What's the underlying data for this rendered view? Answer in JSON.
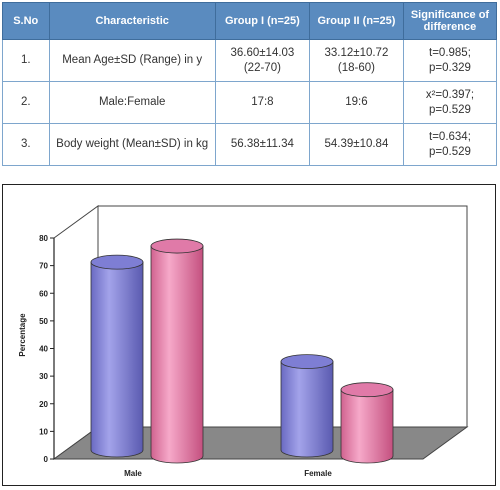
{
  "table": {
    "headers": [
      "S.No",
      "Characteristic",
      "Group I (n=25)",
      "Group II (n=25)",
      "Significance of difference"
    ],
    "rows": [
      [
        "1.",
        "Mean Age±SD (Range) in y",
        "36.60±14.03 (22-70)",
        "33.12±10.72 (18-60)",
        "t=0.985; p=0.329"
      ],
      [
        "2.",
        "Male:Female",
        "17:8",
        "19:6",
        "x²=0.397; p=0.529"
      ],
      [
        "3.",
        "Body weight (Mean±SD) in kg",
        "56.38±11.34",
        "54.39±10.84",
        "t=0.634; p=0.529"
      ]
    ]
  },
  "chart_data": {
    "type": "bar",
    "categories": [
      "Male",
      "Female"
    ],
    "series": [
      {
        "values": [
          68,
          32
        ]
      },
      {
        "values": [
          76,
          24
        ]
      }
    ],
    "ylabel": "Percentage",
    "ylim": [
      0,
      80
    ],
    "yticks": [
      0,
      10,
      20,
      30,
      40,
      50,
      60,
      70,
      80
    ],
    "colors": [
      "#8484d6",
      "#e87fae"
    ],
    "floor_color": "#888888"
  }
}
